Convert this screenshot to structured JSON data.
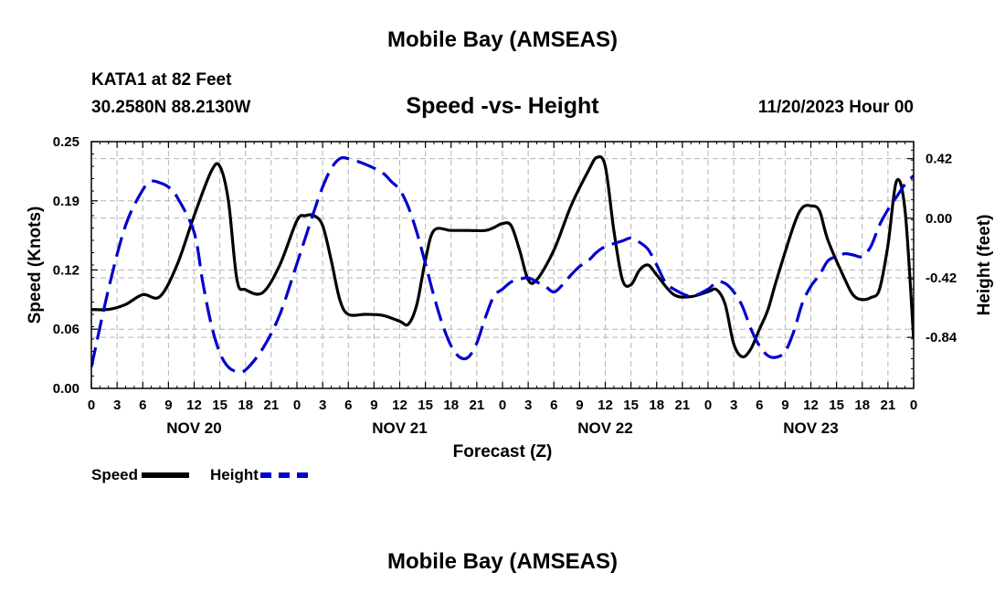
{
  "header": {
    "title": "Mobile Bay (AMSEAS)",
    "station": "KATA1 at 82 Feet",
    "coords": "30.2580N  88.2130W",
    "datetime": "11/20/2023 Hour 00",
    "footer_title": "Mobile Bay (AMSEAS)"
  },
  "colors": {
    "speed": "#000000",
    "height": "#0000cc",
    "grid": "#b4b4b4"
  },
  "legend": {
    "speed_label": "Speed",
    "height_label": "Height"
  },
  "chart_data": {
    "type": "line",
    "title": "Speed -vs- Height",
    "xlabel": "Forecast (Z)",
    "ylabel": "Speed (Knots)",
    "y2label": "Height (feet)",
    "xlim": [
      0,
      96
    ],
    "ylim": [
      0,
      0.25
    ],
    "y2lim": [
      -1.2,
      0.54
    ],
    "x_ticks": [
      0,
      3,
      6,
      9,
      12,
      15,
      18,
      21,
      24,
      27,
      30,
      33,
      36,
      39,
      42,
      45,
      48,
      51,
      54,
      57,
      60,
      63,
      66,
      69,
      72,
      75,
      78,
      81,
      84,
      87,
      90,
      93,
      96
    ],
    "x_tick_labels": [
      "0",
      "3",
      "6",
      "9",
      "12",
      "15",
      "18",
      "21",
      "0",
      "3",
      "6",
      "9",
      "12",
      "15",
      "18",
      "21",
      "0",
      "3",
      "6",
      "9",
      "12",
      "15",
      "18",
      "21",
      "0",
      "3",
      "6",
      "9",
      "12",
      "15",
      "18",
      "21",
      "0"
    ],
    "day_labels": [
      {
        "x": 12,
        "label": "NOV 20"
      },
      {
        "x": 36,
        "label": "NOV 21"
      },
      {
        "x": 60,
        "label": "NOV 22"
      },
      {
        "x": 84,
        "label": "NOV 23"
      }
    ],
    "y_ticks": [
      0.0,
      0.06,
      0.12,
      0.19,
      0.25
    ],
    "y_tick_labels": [
      "0.00",
      "0.06",
      "0.12",
      "0.19",
      "0.25"
    ],
    "y2_ticks": [
      0.42,
      0.0,
      -0.42,
      -0.84
    ],
    "y2_tick_labels": [
      "0.42",
      "0.00",
      "-0.42",
      "-0.84"
    ],
    "series": [
      {
        "name": "Speed",
        "axis": "left",
        "style": "solid",
        "points": [
          [
            0,
            0.08
          ],
          [
            2,
            0.08
          ],
          [
            4,
            0.085
          ],
          [
            6,
            0.095
          ],
          [
            8,
            0.093
          ],
          [
            10,
            0.125
          ],
          [
            12,
            0.175
          ],
          [
            14,
            0.22
          ],
          [
            15,
            0.225
          ],
          [
            16,
            0.19
          ],
          [
            17,
            0.11
          ],
          [
            18,
            0.1
          ],
          [
            20,
            0.097
          ],
          [
            22,
            0.125
          ],
          [
            24,
            0.17
          ],
          [
            25,
            0.175
          ],
          [
            26,
            0.175
          ],
          [
            27,
            0.165
          ],
          [
            28,
            0.13
          ],
          [
            29,
            0.09
          ],
          [
            30,
            0.075
          ],
          [
            32,
            0.075
          ],
          [
            34,
            0.074
          ],
          [
            36,
            0.068
          ],
          [
            37,
            0.065
          ],
          [
            38,
            0.085
          ],
          [
            39,
            0.13
          ],
          [
            40,
            0.16
          ],
          [
            42,
            0.16
          ],
          [
            44,
            0.16
          ],
          [
            46,
            0.16
          ],
          [
            47,
            0.163
          ],
          [
            48,
            0.167
          ],
          [
            49,
            0.165
          ],
          [
            50,
            0.14
          ],
          [
            51,
            0.11
          ],
          [
            52,
            0.11
          ],
          [
            54,
            0.14
          ],
          [
            56,
            0.185
          ],
          [
            58,
            0.22
          ],
          [
            59,
            0.234
          ],
          [
            60,
            0.225
          ],
          [
            61,
            0.16
          ],
          [
            62,
            0.11
          ],
          [
            63,
            0.105
          ],
          [
            64,
            0.12
          ],
          [
            65,
            0.125
          ],
          [
            66,
            0.115
          ],
          [
            68,
            0.095
          ],
          [
            70,
            0.093
          ],
          [
            72,
            0.098
          ],
          [
            73,
            0.1
          ],
          [
            74,
            0.085
          ],
          [
            75,
            0.045
          ],
          [
            76,
            0.032
          ],
          [
            77,
            0.04
          ],
          [
            78,
            0.06
          ],
          [
            79,
            0.08
          ],
          [
            80,
            0.11
          ],
          [
            82,
            0.165
          ],
          [
            83,
            0.183
          ],
          [
            84,
            0.185
          ],
          [
            85,
            0.18
          ],
          [
            86,
            0.15
          ],
          [
            88,
            0.11
          ],
          [
            89,
            0.094
          ],
          [
            90,
            0.09
          ],
          [
            91,
            0.092
          ],
          [
            92,
            0.1
          ],
          [
            93,
            0.145
          ],
          [
            94,
            0.21
          ],
          [
            95,
            0.18
          ],
          [
            96,
            0.05
          ]
        ]
      },
      {
        "name": "Height",
        "axis": "right",
        "style": "dashed",
        "points": [
          [
            0,
            -1.05
          ],
          [
            2,
            -0.5
          ],
          [
            4,
            -0.05
          ],
          [
            6,
            0.2
          ],
          [
            7,
            0.26
          ],
          [
            8,
            0.25
          ],
          [
            9,
            0.22
          ],
          [
            10,
            0.15
          ],
          [
            12,
            -0.1
          ],
          [
            13,
            -0.45
          ],
          [
            14,
            -0.75
          ],
          [
            15,
            -0.95
          ],
          [
            16,
            -1.05
          ],
          [
            17,
            -1.08
          ],
          [
            18,
            -1.07
          ],
          [
            20,
            -0.92
          ],
          [
            22,
            -0.68
          ],
          [
            24,
            -0.32
          ],
          [
            26,
            0.05
          ],
          [
            27,
            0.22
          ],
          [
            28,
            0.35
          ],
          [
            29,
            0.42
          ],
          [
            30,
            0.42
          ],
          [
            32,
            0.38
          ],
          [
            34,
            0.32
          ],
          [
            35,
            0.26
          ],
          [
            36,
            0.2
          ],
          [
            37,
            0.08
          ],
          [
            38,
            -0.1
          ],
          [
            39,
            -0.32
          ],
          [
            40,
            -0.55
          ],
          [
            41,
            -0.75
          ],
          [
            42,
            -0.9
          ],
          [
            43,
            -0.98
          ],
          [
            44,
            -0.98
          ],
          [
            45,
            -0.88
          ],
          [
            46,
            -0.7
          ],
          [
            47,
            -0.55
          ],
          [
            48,
            -0.5
          ],
          [
            49,
            -0.45
          ],
          [
            50,
            -0.43
          ],
          [
            51,
            -0.42
          ],
          [
            52,
            -0.45
          ],
          [
            53,
            -0.48
          ],
          [
            54,
            -0.52
          ],
          [
            55,
            -0.47
          ],
          [
            56,
            -0.4
          ],
          [
            57,
            -0.34
          ],
          [
            58,
            -0.3
          ],
          [
            59,
            -0.24
          ],
          [
            60,
            -0.2
          ],
          [
            62,
            -0.16
          ],
          [
            63,
            -0.14
          ],
          [
            64,
            -0.17
          ],
          [
            65,
            -0.22
          ],
          [
            66,
            -0.33
          ],
          [
            67,
            -0.45
          ],
          [
            68,
            -0.5
          ],
          [
            70,
            -0.55
          ],
          [
            72,
            -0.5
          ],
          [
            73,
            -0.45
          ],
          [
            74,
            -0.46
          ],
          [
            75,
            -0.52
          ],
          [
            76,
            -0.62
          ],
          [
            77,
            -0.78
          ],
          [
            78,
            -0.9
          ],
          [
            79,
            -0.97
          ],
          [
            80,
            -0.98
          ],
          [
            81,
            -0.94
          ],
          [
            82,
            -0.8
          ],
          [
            83,
            -0.6
          ],
          [
            84,
            -0.48
          ],
          [
            85,
            -0.4
          ],
          [
            86,
            -0.3
          ],
          [
            87,
            -0.27
          ],
          [
            88,
            -0.25
          ],
          [
            89,
            -0.26
          ],
          [
            90,
            -0.27
          ],
          [
            91,
            -0.2
          ],
          [
            92,
            -0.05
          ],
          [
            93,
            0.06
          ],
          [
            94,
            0.15
          ],
          [
            95,
            0.24
          ],
          [
            96,
            0.3
          ]
        ]
      }
    ],
    "legend_position": "bottom-left"
  }
}
